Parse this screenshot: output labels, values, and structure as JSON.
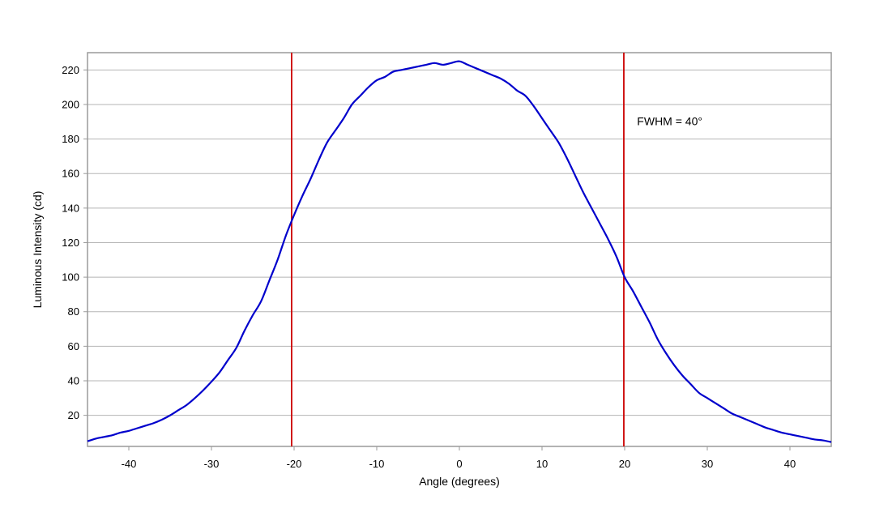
{
  "chart_data": {
    "type": "line",
    "title": "",
    "xlabel": "Angle (degrees)",
    "ylabel": "Luminous Intensity (cd)",
    "xlim": [
      -45,
      45
    ],
    "ylim": [
      2,
      230
    ],
    "x_ticks": [
      -40,
      -30,
      -20,
      -10,
      0,
      10,
      20,
      30,
      40
    ],
    "y_ticks": [
      20,
      40,
      60,
      80,
      100,
      120,
      140,
      160,
      180,
      200,
      220
    ],
    "grid": "horizontal",
    "legend": "none",
    "series": [
      {
        "color": "#0000cc",
        "x": [
          -45,
          -44,
          -43,
          -42,
          -41,
          -40,
          -39,
          -38,
          -37,
          -36,
          -35,
          -34,
          -33,
          -32,
          -31,
          -30,
          -29,
          -28,
          -27,
          -26,
          -25,
          -24,
          -23,
          -22,
          -21,
          -20,
          -19,
          -18,
          -17,
          -16,
          -15,
          -14,
          -13,
          -12,
          -11,
          -10,
          -9,
          -8,
          -7,
          -6,
          -5,
          -4,
          -3,
          -2,
          -1,
          0,
          1,
          2,
          3,
          4,
          5,
          6,
          7,
          8,
          9,
          10,
          11,
          12,
          13,
          14,
          15,
          16,
          17,
          18,
          19,
          20,
          21,
          22,
          23,
          24,
          25,
          26,
          27,
          28,
          29,
          30,
          31,
          32,
          33,
          34,
          35,
          36,
          37,
          38,
          39,
          40,
          41,
          42,
          43,
          44,
          45
        ],
        "values": [
          5,
          6.5,
          7.5,
          8.5,
          10,
          11,
          12.5,
          14,
          15.5,
          17.5,
          20,
          23,
          26,
          30,
          34.5,
          39.5,
          45,
          52,
          59,
          69,
          78,
          86,
          98,
          110,
          124,
          136,
          147,
          157,
          168,
          178,
          185,
          192,
          200,
          205,
          210,
          214,
          216,
          219,
          220,
          221,
          222,
          223,
          224,
          223,
          224,
          225,
          223,
          221,
          219,
          217,
          215,
          212,
          208,
          205,
          199,
          192,
          185,
          178,
          169,
          159,
          149,
          140,
          131,
          122,
          112,
          100,
          92,
          83,
          74,
          64,
          56,
          49,
          43,
          38,
          33,
          30,
          27,
          24,
          21,
          19,
          17,
          15,
          13,
          11.5,
          10,
          9,
          8,
          7,
          6,
          5.5,
          4.5
        ]
      }
    ],
    "reference_lines": [
      {
        "x": -20.3,
        "color": "#cc0000"
      },
      {
        "x": 19.9,
        "color": "#cc0000"
      }
    ],
    "annotation": {
      "text": "FWHM = 40°",
      "x": 21.5,
      "y": 188
    }
  }
}
